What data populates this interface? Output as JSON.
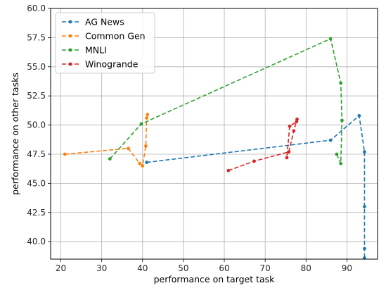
{
  "chart_data": {
    "type": "line",
    "title": "",
    "xlabel": "performance on target task",
    "ylabel": "performance on other tasks",
    "xlim": [
      17.5,
      97.5
    ],
    "ylim": [
      38.5,
      60.0
    ],
    "xticks": [
      20,
      30,
      40,
      50,
      60,
      70,
      80,
      90
    ],
    "yticks": [
      40.0,
      42.5,
      45.0,
      47.5,
      50.0,
      52.5,
      55.0,
      57.5,
      60.0
    ],
    "xtick_labels": [
      "20",
      "30",
      "40",
      "50",
      "60",
      "70",
      "80",
      "90"
    ],
    "ytick_labels": [
      "40.0",
      "42.5",
      "45.0",
      "47.5",
      "50.0",
      "52.5",
      "55.0",
      "57.5",
      "60.0"
    ],
    "grid": true,
    "legend_position": "top-left",
    "line_style": "dashed",
    "marker": "dot",
    "series": [
      {
        "name": "AG News",
        "color": "#1f77b4",
        "x": [
          41.0,
          86.0,
          93.0,
          94.3,
          94.3,
          94.3,
          94.3
        ],
        "y": [
          46.8,
          48.7,
          50.8,
          47.7,
          43.0,
          39.4,
          38.6
        ]
      },
      {
        "name": "Common Gen",
        "color": "#ff7f0e",
        "x": [
          21.0,
          36.5,
          39.3,
          40.0,
          40.8,
          41.0,
          41.2
        ],
        "y": [
          47.5,
          48.0,
          46.7,
          46.5,
          48.2,
          50.6,
          50.9
        ]
      },
      {
        "name": "MNLI",
        "color": "#2ca02c",
        "x": [
          32.0,
          39.7,
          86.0,
          88.5,
          88.8,
          88.5,
          87.5
        ],
        "y": [
          47.1,
          50.1,
          57.4,
          53.6,
          50.4,
          46.7,
          47.5
        ]
      },
      {
        "name": "Winogrande",
        "color": "#d62728",
        "x": [
          61.0,
          67.3,
          75.8,
          77.0,
          77.8,
          77.7,
          76.0,
          75.3
        ],
        "y": [
          46.1,
          46.9,
          47.7,
          49.5,
          50.5,
          50.3,
          49.9,
          47.2
        ]
      }
    ]
  }
}
